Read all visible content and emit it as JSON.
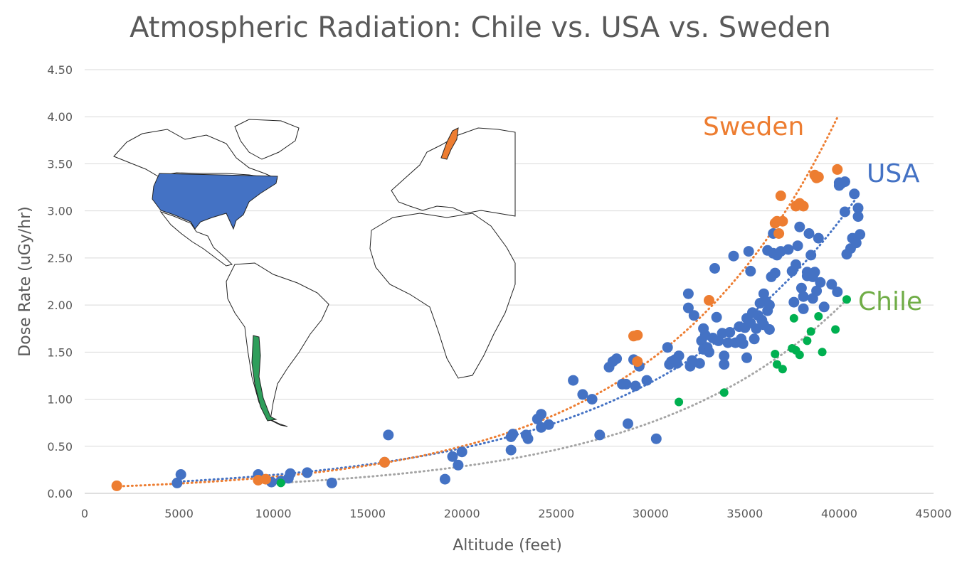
{
  "chart_data": {
    "type": "scatter",
    "title": "Atmospheric Radiation: Chile vs. USA vs. Sweden",
    "xlabel": "Altitude (feet)",
    "ylabel": "Dose Rate (uGy/hr)",
    "xlim": [
      0,
      45000
    ],
    "ylim": [
      0,
      4.5
    ],
    "x_ticks": [
      "0",
      "5000",
      "10000",
      "15000",
      "20000",
      "25000",
      "30000",
      "35000",
      "40000",
      "45000"
    ],
    "y_ticks": [
      "0.00",
      "0.50",
      "1.00",
      "1.50",
      "2.00",
      "2.50",
      "3.00",
      "3.50",
      "4.00",
      "4.50"
    ],
    "grid": "horizontal",
    "trendline": "exponential, dotted",
    "series": [
      {
        "name": "USA",
        "color": "#4472C4",
        "trend": {
          "a": 0.0796,
          "b": 8.98e-05,
          "x0": 4800,
          "x1": 40900
        },
        "points": [
          [
            4900,
            0.11
          ],
          [
            5100,
            0.2
          ],
          [
            9200,
            0.2
          ],
          [
            9900,
            0.12
          ],
          [
            10400,
            0.13
          ],
          [
            10800,
            0.16
          ],
          [
            10900,
            0.21
          ],
          [
            11800,
            0.22
          ],
          [
            13100,
            0.11
          ],
          [
            15900,
            0.33
          ],
          [
            16100,
            0.62
          ],
          [
            19100,
            0.15
          ],
          [
            19500,
            0.39
          ],
          [
            19800,
            0.3
          ],
          [
            20000,
            0.44
          ],
          [
            22600,
            0.46
          ],
          [
            22600,
            0.6
          ],
          [
            22700,
            0.63
          ],
          [
            23400,
            0.62
          ],
          [
            23500,
            0.58
          ],
          [
            24000,
            0.79
          ],
          [
            24200,
            0.84
          ],
          [
            24200,
            0.7
          ],
          [
            24600,
            0.73
          ],
          [
            25900,
            1.2
          ],
          [
            26400,
            1.05
          ],
          [
            26900,
            1.0
          ],
          [
            27300,
            0.62
          ],
          [
            27800,
            1.34
          ],
          [
            28000,
            1.4
          ],
          [
            28200,
            1.43
          ],
          [
            28500,
            1.16
          ],
          [
            28700,
            1.16
          ],
          [
            28800,
            0.74
          ],
          [
            29100,
            1.42
          ],
          [
            29200,
            1.14
          ],
          [
            29400,
            1.35
          ],
          [
            29800,
            1.2
          ],
          [
            30300,
            0.58
          ],
          [
            30900,
            1.55
          ],
          [
            31000,
            1.37
          ],
          [
            31100,
            1.4
          ],
          [
            31300,
            1.42
          ],
          [
            31400,
            1.38
          ],
          [
            31500,
            1.46
          ],
          [
            32000,
            2.12
          ],
          [
            32000,
            1.97
          ],
          [
            32100,
            1.35
          ],
          [
            32200,
            1.41
          ],
          [
            32300,
            1.89
          ],
          [
            32600,
            1.38
          ],
          [
            32700,
            1.62
          ],
          [
            32800,
            1.53
          ],
          [
            32800,
            1.75
          ],
          [
            32900,
            1.68
          ],
          [
            33000,
            1.55
          ],
          [
            33100,
            1.5
          ],
          [
            33300,
            1.65
          ],
          [
            33400,
            2.39
          ],
          [
            33500,
            1.87
          ],
          [
            33600,
            1.62
          ],
          [
            33800,
            1.7
          ],
          [
            33900,
            1.46
          ],
          [
            33900,
            1.37
          ],
          [
            34100,
            1.6
          ],
          [
            34200,
            1.71
          ],
          [
            34400,
            2.52
          ],
          [
            34500,
            1.6
          ],
          [
            34700,
            1.77
          ],
          [
            34800,
            1.64
          ],
          [
            34900,
            1.59
          ],
          [
            35000,
            1.76
          ],
          [
            35100,
            1.86
          ],
          [
            35100,
            1.44
          ],
          [
            35200,
            2.57
          ],
          [
            35300,
            2.36
          ],
          [
            35300,
            1.81
          ],
          [
            35400,
            1.92
          ],
          [
            35500,
            1.64
          ],
          [
            35600,
            1.75
          ],
          [
            35700,
            1.89
          ],
          [
            35800,
            2.02
          ],
          [
            35900,
            1.84
          ],
          [
            36000,
            2.12
          ],
          [
            36000,
            1.79
          ],
          [
            36100,
            2.04
          ],
          [
            36200,
            1.94
          ],
          [
            36200,
            2.58
          ],
          [
            36300,
            2.0
          ],
          [
            36300,
            1.74
          ],
          [
            36400,
            2.3
          ],
          [
            36500,
            2.76
          ],
          [
            36500,
            2.55
          ],
          [
            36600,
            2.34
          ],
          [
            36700,
            2.53
          ],
          [
            36900,
            2.57
          ],
          [
            37300,
            2.59
          ],
          [
            37500,
            2.36
          ],
          [
            37600,
            2.03
          ],
          [
            37700,
            2.43
          ],
          [
            37800,
            2.63
          ],
          [
            37900,
            2.83
          ],
          [
            38000,
            2.18
          ],
          [
            38100,
            1.96
          ],
          [
            38100,
            2.09
          ],
          [
            38300,
            2.35
          ],
          [
            38300,
            2.31
          ],
          [
            38400,
            2.76
          ],
          [
            38500,
            2.53
          ],
          [
            38600,
            2.07
          ],
          [
            38600,
            2.3
          ],
          [
            38700,
            2.35
          ],
          [
            38800,
            2.15
          ],
          [
            38900,
            2.71
          ],
          [
            39000,
            2.24
          ],
          [
            39200,
            1.98
          ],
          [
            39600,
            2.22
          ],
          [
            39900,
            2.14
          ],
          [
            40000,
            3.27
          ],
          [
            40000,
            3.3
          ],
          [
            40100,
            3.29
          ],
          [
            40300,
            2.99
          ],
          [
            40300,
            3.31
          ],
          [
            40400,
            2.54
          ],
          [
            40600,
            2.6
          ],
          [
            40700,
            2.71
          ],
          [
            40800,
            3.18
          ],
          [
            40900,
            2.66
          ],
          [
            41000,
            2.94
          ],
          [
            41000,
            3.03
          ],
          [
            41100,
            2.75
          ]
        ]
      },
      {
        "name": "Sweden",
        "color": "#ED7D31",
        "trend": {
          "a": 0.0617,
          "b": 0.0001045,
          "x0": 1600,
          "x1": 39900
        },
        "points": [
          [
            1700,
            0.08
          ],
          [
            9200,
            0.14
          ],
          [
            9600,
            0.15
          ],
          [
            15900,
            0.33
          ],
          [
            29100,
            1.67
          ],
          [
            29300,
            1.68
          ],
          [
            29300,
            1.4
          ],
          [
            33100,
            2.05
          ],
          [
            36600,
            2.87
          ],
          [
            36700,
            2.89
          ],
          [
            36800,
            2.76
          ],
          [
            36900,
            3.16
          ],
          [
            37000,
            2.89
          ],
          [
            37700,
            3.05
          ],
          [
            37900,
            3.08
          ],
          [
            38100,
            3.05
          ],
          [
            38700,
            3.38
          ],
          [
            38800,
            3.35
          ],
          [
            38900,
            3.36
          ],
          [
            39900,
            3.44
          ]
        ]
      },
      {
        "name": "Chile",
        "color": "#00B050",
        "trend": {
          "a": 0.0412,
          "b": 9.68e-05,
          "x0": 10300,
          "x1": 40500
        },
        "points": [
          [
            10400,
            0.11
          ],
          [
            31500,
            0.97
          ],
          [
            33900,
            1.07
          ],
          [
            36600,
            1.48
          ],
          [
            36700,
            1.37
          ],
          [
            37000,
            1.32
          ],
          [
            37500,
            1.54
          ],
          [
            37600,
            1.86
          ],
          [
            37700,
            1.52
          ],
          [
            37900,
            1.47
          ],
          [
            38300,
            1.62
          ],
          [
            38500,
            1.72
          ],
          [
            38900,
            1.88
          ],
          [
            39100,
            1.5
          ],
          [
            39800,
            1.74
          ],
          [
            40400,
            2.06
          ]
        ]
      }
    ],
    "annotations": {
      "map": "world map inset highlighting USA (blue), Sweden (orange), Chile (green)"
    }
  }
}
